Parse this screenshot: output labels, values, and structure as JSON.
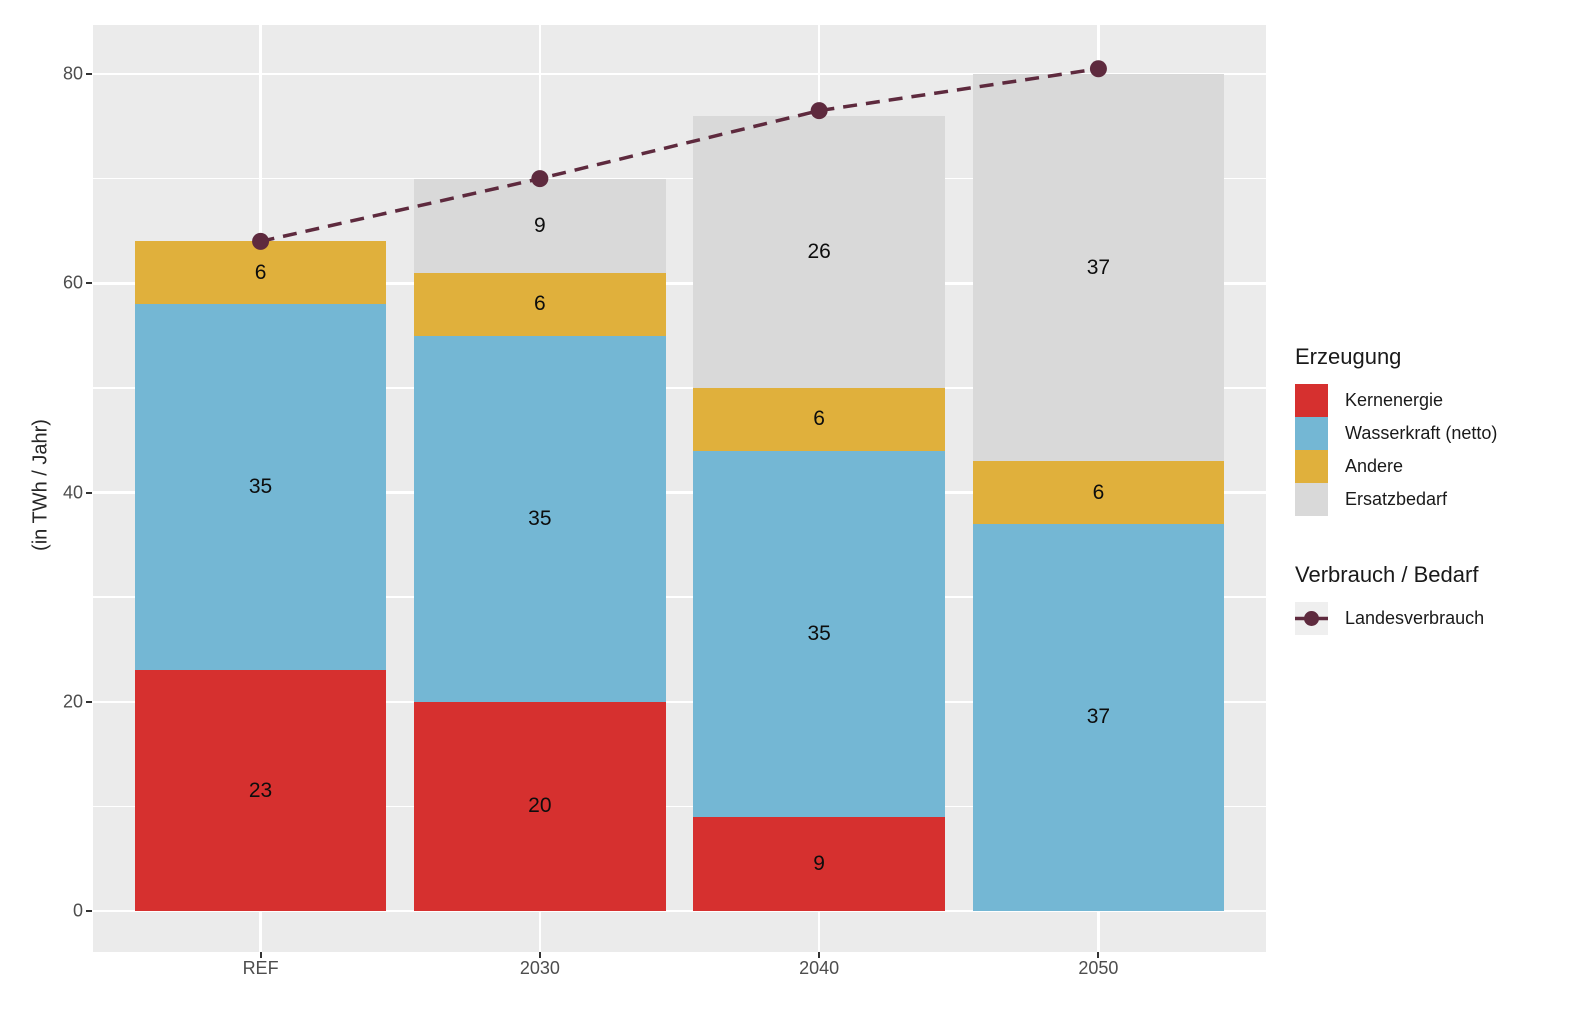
{
  "figure": {
    "background": "#ffffff",
    "panel_background": "#ebebeb",
    "grid_color": "#ffffff"
  },
  "chart_data": {
    "type": "bar",
    "subtype": "stacked-bars-with-dashed-line",
    "title": "",
    "categories": [
      "REF",
      "2030",
      "2040",
      "2050"
    ],
    "series": [
      {
        "name": "Kernenergie",
        "color": "#d6302f",
        "values": [
          23,
          20,
          9,
          0
        ]
      },
      {
        "name": "Wasserkraft (netto)",
        "color": "#74b7d4",
        "values": [
          35,
          35,
          35,
          37
        ]
      },
      {
        "name": "Andere",
        "color": "#e0b03c",
        "values": [
          6,
          6,
          6,
          6
        ]
      },
      {
        "name": "Ersatzbedarf",
        "color": "#d9d9d9",
        "values": [
          0,
          9,
          26,
          37
        ]
      }
    ],
    "bar_totals": [
      64,
      70,
      76,
      80
    ],
    "line_series": [
      {
        "name": "Landesverbrauch",
        "color": "#5e2a3e",
        "linestyle": "dashed",
        "marker": "circle",
        "values": [
          64,
          70,
          76.5,
          80.5
        ]
      }
    ],
    "xlabel": "",
    "ylabel": "(in TWh / Jahr)",
    "yticks": [
      0,
      20,
      40,
      60,
      80
    ],
    "yticks_minor": [
      10,
      30,
      50,
      70
    ],
    "ylim": [
      -4.2,
      84.7
    ],
    "grid": "on",
    "legend_position": "right",
    "legend_groups": [
      {
        "title": "Erzeugung"
      },
      {
        "title": "Verbrauch / Bedarf"
      }
    ],
    "legend_line_key_background": "#efefef",
    "bar_label_color": "#0d0d0d",
    "axis_text_color": "#4d4d4d"
  }
}
